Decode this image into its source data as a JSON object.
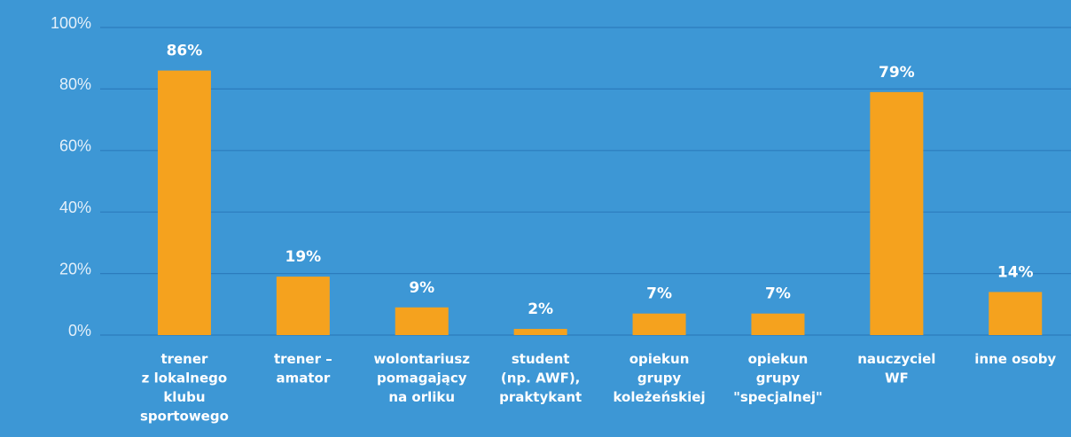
{
  "chart_data": {
    "type": "bar",
    "categories": [
      [
        "trener",
        "z lokalnego",
        "klubu",
        "sportowego"
      ],
      [
        "trener –",
        "amator"
      ],
      [
        "wolontariusz",
        "pomagający",
        "na orliku"
      ],
      [
        "student",
        "(np. AWF),",
        "praktykant"
      ],
      [
        "opiekun",
        "grupy",
        "koleżeńskiej"
      ],
      [
        "opiekun",
        "grupy",
        "\"specjalnej\""
      ],
      [
        "nauczyciel",
        "WF"
      ],
      [
        "inne osoby"
      ]
    ],
    "values": [
      86,
      19,
      9,
      2,
      7,
      7,
      79,
      14
    ],
    "value_labels": [
      "86%",
      "19%",
      "9%",
      "2%",
      "7%",
      "7%",
      "79%",
      "14%"
    ],
    "color": "#f5a21e",
    "ylim": [
      0,
      100
    ],
    "yticks": [
      {
        "value": 0,
        "label": "0%"
      },
      {
        "value": 20,
        "label": "20%"
      },
      {
        "value": 40,
        "label": "40%"
      },
      {
        "value": 60,
        "label": "60%"
      },
      {
        "value": 80,
        "label": "80%"
      },
      {
        "value": 100,
        "label": "100%"
      }
    ],
    "grid": true
  }
}
